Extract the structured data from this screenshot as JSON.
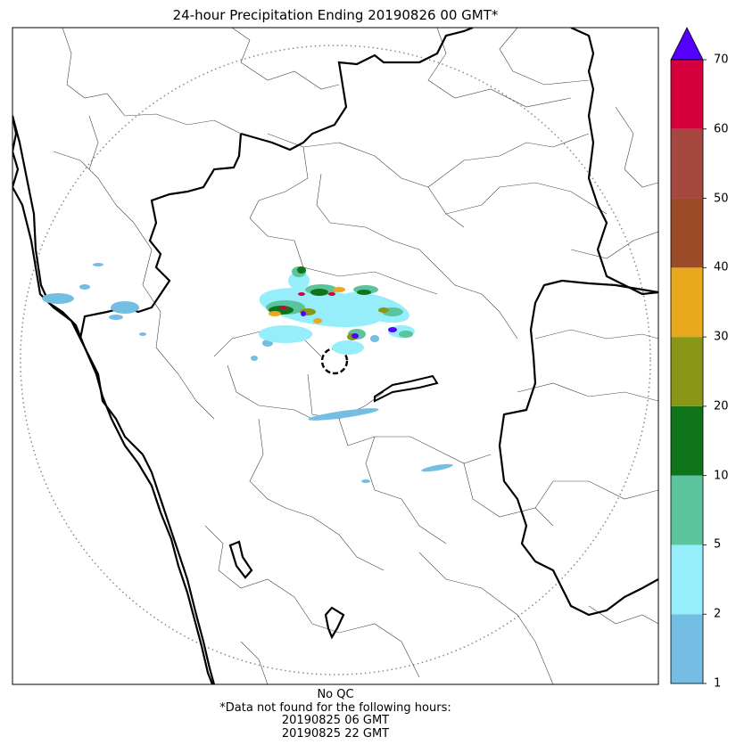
{
  "title": "24-hour Precipitation Ending 20190826 00 GMT*",
  "colorbar": {
    "extend": "max",
    "extend_color": "#5500ff",
    "levels": [
      1,
      2,
      5,
      10,
      20,
      30,
      40,
      50,
      60,
      70
    ],
    "tick_labels": [
      "1",
      "2",
      "5",
      "10",
      "20",
      "30",
      "40",
      "50",
      "60",
      "70"
    ],
    "colors": [
      "#74bde3",
      "#95eefa",
      "#5cc49d",
      "#0e7319",
      "#8a9617",
      "#e8a91e",
      "#9b4b27",
      "#a54940",
      "#d6003e"
    ]
  },
  "footer": {
    "line1": "No QC",
    "line2": "*Data not found for the following hours:",
    "line3": "20190825 06 GMT",
    "line4": "20190825 22 GMT"
  }
}
